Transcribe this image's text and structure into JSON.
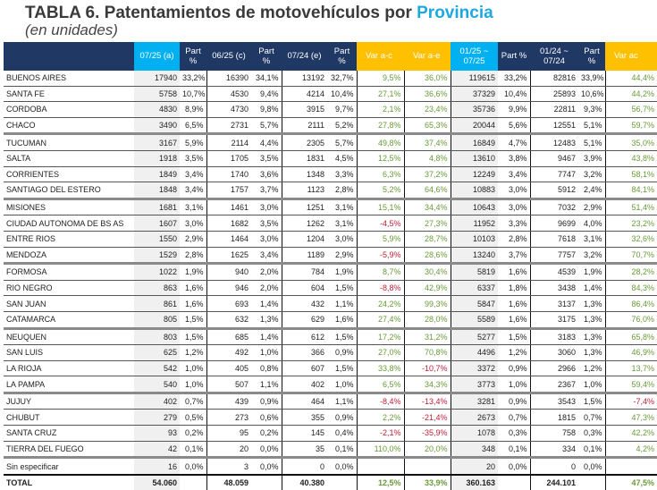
{
  "title": {
    "main": "TABLA 6. Patentamientos de motovehículos por ",
    "highlight": "Provincia",
    "subtitle": "(en unidades)"
  },
  "colors": {
    "navy": "#1f3864",
    "cyan": "#00b0f0",
    "gold": "#ffc000",
    "positive": "#6a9a3a",
    "negative": "#c0203a"
  },
  "headers": [
    "",
    "07/25 (a)",
    "Part %",
    "06/25 (c)",
    "Part %",
    "07/24 (e)",
    "Part %",
    "Var a-c",
    "Var a-e",
    "01/25 ~ 07/25",
    "Part %",
    "01/24 ~ 07/24",
    "Part %",
    "Var ac"
  ],
  "rows": [
    [
      "BUENOS AIRES",
      "17940",
      "33,2%",
      "16390",
      "34,1%",
      "13192",
      "32,7%",
      "9,5%",
      "36,0%",
      "119615",
      "33,2%",
      "82816",
      "33,9%",
      "44,4%"
    ],
    [
      "SANTA FE",
      "5758",
      "10,7%",
      "4530",
      "9,4%",
      "4214",
      "10,4%",
      "27,1%",
      "36,6%",
      "37329",
      "10,4%",
      "25893",
      "10,6%",
      "44,2%"
    ],
    [
      "CORDOBA",
      "4830",
      "8,9%",
      "4730",
      "9,8%",
      "3915",
      "9,7%",
      "2,1%",
      "23,4%",
      "35736",
      "9,9%",
      "22811",
      "9,3%",
      "56,7%"
    ],
    [
      "CHACO",
      "3490",
      "6,5%",
      "2731",
      "5,7%",
      "2111",
      "5,2%",
      "27,8%",
      "65,3%",
      "20044",
      "5,6%",
      "12551",
      "5,1%",
      "59,7%"
    ],
    [
      "TUCUMAN",
      "3167",
      "5,9%",
      "2114",
      "4,4%",
      "2305",
      "5,7%",
      "49,8%",
      "37,4%",
      "16849",
      "4,7%",
      "12483",
      "5,1%",
      "35,0%"
    ],
    [
      "SALTA",
      "1918",
      "3,5%",
      "1705",
      "3,5%",
      "1831",
      "4,5%",
      "12,5%",
      "4,8%",
      "13610",
      "3,8%",
      "9467",
      "3,9%",
      "43,8%"
    ],
    [
      "CORRIENTES",
      "1849",
      "3,4%",
      "1740",
      "3,6%",
      "1348",
      "3,3%",
      "6,3%",
      "37,2%",
      "12249",
      "3,4%",
      "7747",
      "3,2%",
      "58,1%"
    ],
    [
      "SANTIAGO DEL ESTERO",
      "1848",
      "3,4%",
      "1757",
      "3,7%",
      "1123",
      "2,8%",
      "5,2%",
      "64,6%",
      "10883",
      "3,0%",
      "5912",
      "2,4%",
      "84,1%"
    ],
    [
      "MISIONES",
      "1681",
      "3,1%",
      "1461",
      "3,0%",
      "1251",
      "3,1%",
      "15,1%",
      "34,4%",
      "10643",
      "3,0%",
      "7032",
      "2,9%",
      "51,4%"
    ],
    [
      "CIUDAD AUTONOMA DE BS AS",
      "1607",
      "3,0%",
      "1682",
      "3,5%",
      "1262",
      "3,1%",
      "-4,5%",
      "27,3%",
      "11952",
      "3,3%",
      "9699",
      "4,0%",
      "23,2%"
    ],
    [
      "ENTRE RIOS",
      "1550",
      "2,9%",
      "1464",
      "3,0%",
      "1204",
      "3,0%",
      "5,9%",
      "28,7%",
      "10103",
      "2,8%",
      "7618",
      "3,1%",
      "32,6%"
    ],
    [
      "MENDOZA",
      "1529",
      "2,8%",
      "1625",
      "3,4%",
      "1189",
      "2,9%",
      "-5,9%",
      "28,6%",
      "13240",
      "3,7%",
      "7757",
      "3,2%",
      "70,7%"
    ],
    [
      "FORMOSA",
      "1022",
      "1,9%",
      "940",
      "2,0%",
      "784",
      "1,9%",
      "8,7%",
      "30,4%",
      "5819",
      "1,6%",
      "4539",
      "1,9%",
      "28,2%"
    ],
    [
      "RIO NEGRO",
      "863",
      "1,6%",
      "946",
      "2,0%",
      "604",
      "1,5%",
      "-8,8%",
      "42,9%",
      "6337",
      "1,8%",
      "3438",
      "1,4%",
      "84,3%"
    ],
    [
      "SAN JUAN",
      "861",
      "1,6%",
      "693",
      "1,4%",
      "432",
      "1,1%",
      "24,2%",
      "99,3%",
      "5847",
      "1,6%",
      "3137",
      "1,3%",
      "86,4%"
    ],
    [
      "CATAMARCA",
      "805",
      "1,5%",
      "632",
      "1,3%",
      "629",
      "1,6%",
      "27,4%",
      "28,0%",
      "5589",
      "1,6%",
      "3175",
      "1,3%",
      "76,0%"
    ],
    [
      "NEUQUEN",
      "803",
      "1,5%",
      "685",
      "1,4%",
      "612",
      "1,5%",
      "17,2%",
      "31,2%",
      "5277",
      "1,5%",
      "3183",
      "1,3%",
      "65,8%"
    ],
    [
      "SAN LUIS",
      "625",
      "1,2%",
      "492",
      "1,0%",
      "366",
      "0,9%",
      "27,0%",
      "70,8%",
      "4496",
      "1,2%",
      "3060",
      "1,3%",
      "46,9%"
    ],
    [
      "LA RIOJA",
      "542",
      "1,0%",
      "405",
      "0,8%",
      "607",
      "1,5%",
      "33,8%",
      "-10,7%",
      "3372",
      "0,9%",
      "2966",
      "1,2%",
      "13,7%"
    ],
    [
      "LA PAMPA",
      "540",
      "1,0%",
      "507",
      "1,1%",
      "402",
      "1,0%",
      "6,5%",
      "34,3%",
      "3773",
      "1,0%",
      "2367",
      "1,0%",
      "59,4%"
    ],
    [
      "JUJUY",
      "402",
      "0,7%",
      "439",
      "0,9%",
      "464",
      "1,1%",
      "-8,4%",
      "-13,4%",
      "3281",
      "0,9%",
      "3543",
      "1,5%",
      "-7,4%"
    ],
    [
      "CHUBUT",
      "279",
      "0,5%",
      "273",
      "0,6%",
      "355",
      "0,9%",
      "2,2%",
      "-21,4%",
      "2673",
      "0,7%",
      "1815",
      "0,7%",
      "47,3%"
    ],
    [
      "SANTA CRUZ",
      "93",
      "0,2%",
      "95",
      "0,2%",
      "145",
      "0,4%",
      "-2,1%",
      "-35,9%",
      "1078",
      "0,3%",
      "758",
      "0,3%",
      "42,2%"
    ],
    [
      "TIERRA DEL FUEGO",
      "42",
      "0,1%",
      "20",
      "0,0%",
      "35",
      "0,1%",
      "110,0%",
      "20,0%",
      "348",
      "0,1%",
      "334",
      "0,1%",
      "4,2%"
    ],
    [
      "Sin especificar",
      "16",
      "0,0%",
      "3",
      "0,0%",
      "0",
      "0,0%",
      "",
      "",
      "20",
      "0,0%",
      "0",
      "0,0%",
      ""
    ]
  ],
  "total": [
    "TOTAL",
    "54.060",
    "",
    "48.059",
    "",
    "40.380",
    "",
    "12,5%",
    "33,9%",
    "360.163",
    "",
    "244.101",
    "",
    "47,5%"
  ]
}
